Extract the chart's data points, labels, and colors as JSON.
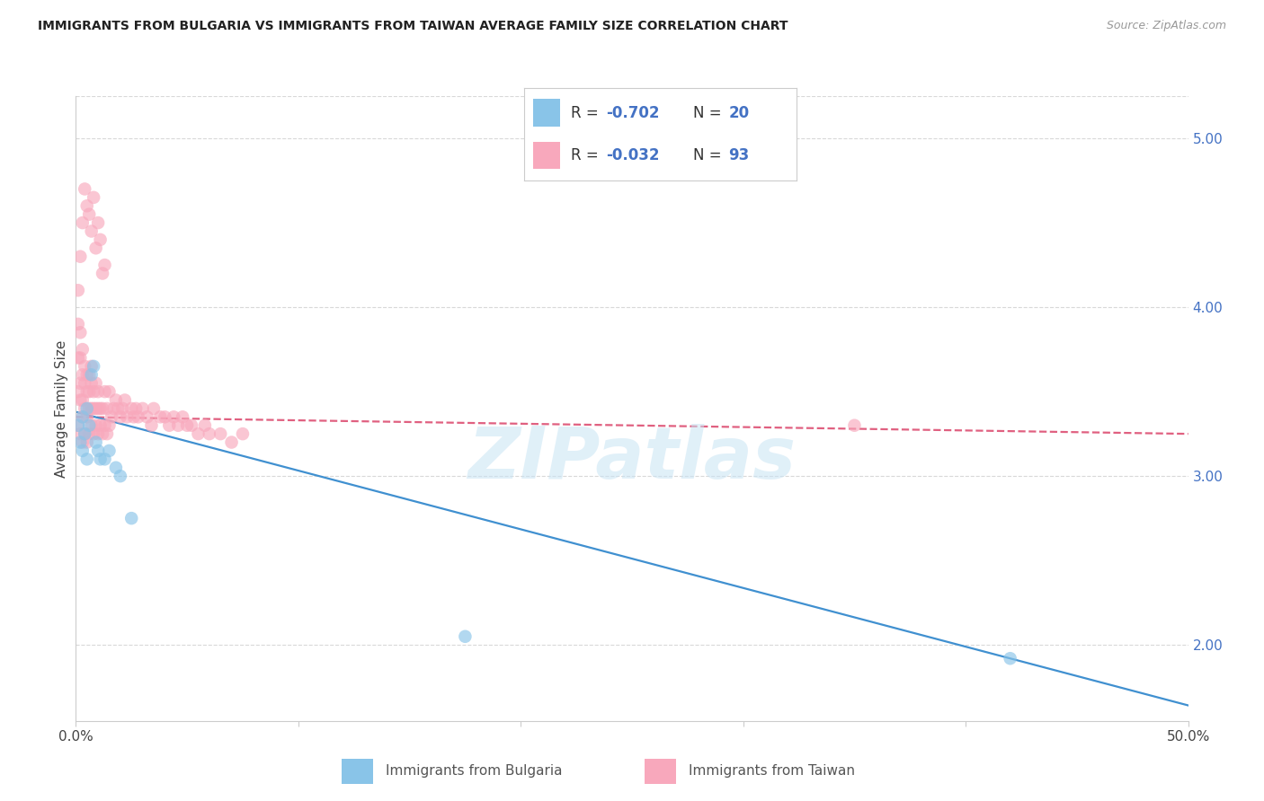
{
  "title": "IMMIGRANTS FROM BULGARIA VS IMMIGRANTS FROM TAIWAN AVERAGE FAMILY SIZE CORRELATION CHART",
  "source": "Source: ZipAtlas.com",
  "ylabel": "Average Family Size",
  "yticks_right": [
    2.0,
    3.0,
    4.0,
    5.0
  ],
  "xlim": [
    0.0,
    0.5
  ],
  "ylim": [
    1.55,
    5.25
  ],
  "bg_color": "#ffffff",
  "grid_color": "#d8d8d8",
  "watermark": "ZIPatlas",
  "color_bulgaria": "#89c4e8",
  "color_taiwan": "#f8a8bc",
  "line_color_bulgaria": "#4090d0",
  "line_color_taiwan": "#e06080",
  "scatter_alpha": 0.65,
  "scatter_size": 110,
  "legend_label1": "Immigrants from Bulgaria",
  "legend_label2": "Immigrants from Taiwan",
  "bul_x": [
    0.001,
    0.002,
    0.003,
    0.003,
    0.004,
    0.005,
    0.005,
    0.006,
    0.007,
    0.008,
    0.009,
    0.01,
    0.011,
    0.013,
    0.015,
    0.018,
    0.02,
    0.025,
    0.175,
    0.42
  ],
  "bul_y": [
    3.3,
    3.2,
    3.35,
    3.15,
    3.25,
    3.4,
    3.1,
    3.3,
    3.6,
    3.65,
    3.2,
    3.15,
    3.1,
    3.1,
    3.15,
    3.05,
    3.0,
    2.75,
    2.05,
    1.92
  ],
  "tai_x": [
    0.001,
    0.001,
    0.001,
    0.001,
    0.001,
    0.002,
    0.002,
    0.002,
    0.002,
    0.002,
    0.003,
    0.003,
    0.003,
    0.003,
    0.003,
    0.004,
    0.004,
    0.004,
    0.004,
    0.005,
    0.005,
    0.005,
    0.005,
    0.006,
    0.006,
    0.006,
    0.006,
    0.007,
    0.007,
    0.007,
    0.007,
    0.008,
    0.008,
    0.008,
    0.009,
    0.009,
    0.009,
    0.01,
    0.01,
    0.01,
    0.011,
    0.011,
    0.012,
    0.012,
    0.013,
    0.013,
    0.014,
    0.014,
    0.015,
    0.015,
    0.016,
    0.017,
    0.018,
    0.019,
    0.02,
    0.021,
    0.022,
    0.023,
    0.025,
    0.026,
    0.027,
    0.028,
    0.03,
    0.032,
    0.034,
    0.035,
    0.038,
    0.04,
    0.042,
    0.044,
    0.046,
    0.048,
    0.05,
    0.052,
    0.055,
    0.058,
    0.06,
    0.065,
    0.07,
    0.075,
    0.002,
    0.003,
    0.004,
    0.005,
    0.006,
    0.007,
    0.008,
    0.009,
    0.01,
    0.011,
    0.012,
    0.013,
    0.35
  ],
  "tai_y": [
    3.3,
    3.5,
    3.7,
    3.9,
    4.1,
    3.25,
    3.45,
    3.55,
    3.7,
    3.85,
    3.2,
    3.35,
    3.45,
    3.6,
    3.75,
    3.25,
    3.4,
    3.55,
    3.65,
    3.2,
    3.35,
    3.5,
    3.6,
    3.25,
    3.4,
    3.5,
    3.6,
    3.3,
    3.4,
    3.55,
    3.65,
    3.25,
    3.4,
    3.5,
    3.3,
    3.4,
    3.55,
    3.25,
    3.4,
    3.5,
    3.3,
    3.4,
    3.25,
    3.4,
    3.3,
    3.5,
    3.25,
    3.4,
    3.3,
    3.5,
    3.35,
    3.4,
    3.45,
    3.4,
    3.35,
    3.4,
    3.45,
    3.35,
    3.4,
    3.35,
    3.4,
    3.35,
    3.4,
    3.35,
    3.3,
    3.4,
    3.35,
    3.35,
    3.3,
    3.35,
    3.3,
    3.35,
    3.3,
    3.3,
    3.25,
    3.3,
    3.25,
    3.25,
    3.2,
    3.25,
    4.3,
    4.5,
    4.7,
    4.6,
    4.55,
    4.45,
    4.65,
    4.35,
    4.5,
    4.4,
    4.2,
    4.25,
    3.3
  ]
}
